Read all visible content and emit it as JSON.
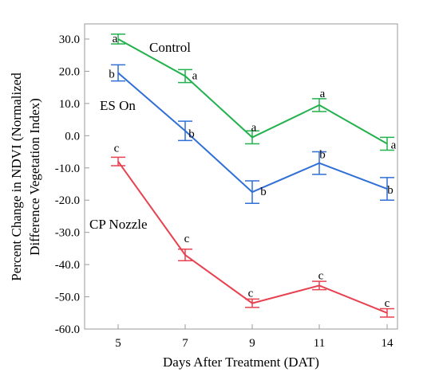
{
  "chart_data": {
    "type": "line",
    "categories": [
      "5",
      "7",
      "9",
      "11",
      "14"
    ],
    "xlabel": "Days After Treatment (DAT)",
    "ylabel_lines": [
      "Percent Change in NDVI (Normalized",
      "Difference Vegetation Index)"
    ],
    "ylim": [
      -60,
      35
    ],
    "yticks": [
      "30.0",
      "20.0",
      "10.0",
      "0.0",
      "-10.0",
      "-20.0",
      "-30.0",
      "-40.0",
      "-50.0",
      "-60.0"
    ],
    "ytick_values": [
      30,
      20,
      10,
      0,
      -10,
      -20,
      -30,
      -40,
      -50,
      -60
    ],
    "grid": false,
    "series": [
      {
        "name": "Control",
        "color": "#22b14c",
        "values": [
          30.0,
          18.5,
          -0.5,
          9.5,
          -2.5
        ],
        "error": [
          1.5,
          2.0,
          2.0,
          2.0,
          2.0
        ],
        "letters": [
          "a",
          "a",
          "a",
          "a",
          "a"
        ]
      },
      {
        "name": "ES On",
        "color": "#2f6fd6",
        "values": [
          19.5,
          1.5,
          -17.5,
          -8.5,
          -16.5
        ],
        "error": [
          2.5,
          3.0,
          3.5,
          3.5,
          3.5
        ],
        "letters": [
          "b",
          "b",
          "b",
          "b",
          "b"
        ]
      },
      {
        "name": "CP Nozzle",
        "color": "#e8414f",
        "values": [
          -8.0,
          -37.0,
          -52.0,
          -46.5,
          -55.0
        ],
        "error": [
          1.3,
          1.8,
          1.3,
          1.3,
          1.3
        ],
        "letters": [
          "c",
          "c",
          "c",
          "c",
          "c"
        ]
      }
    ]
  }
}
